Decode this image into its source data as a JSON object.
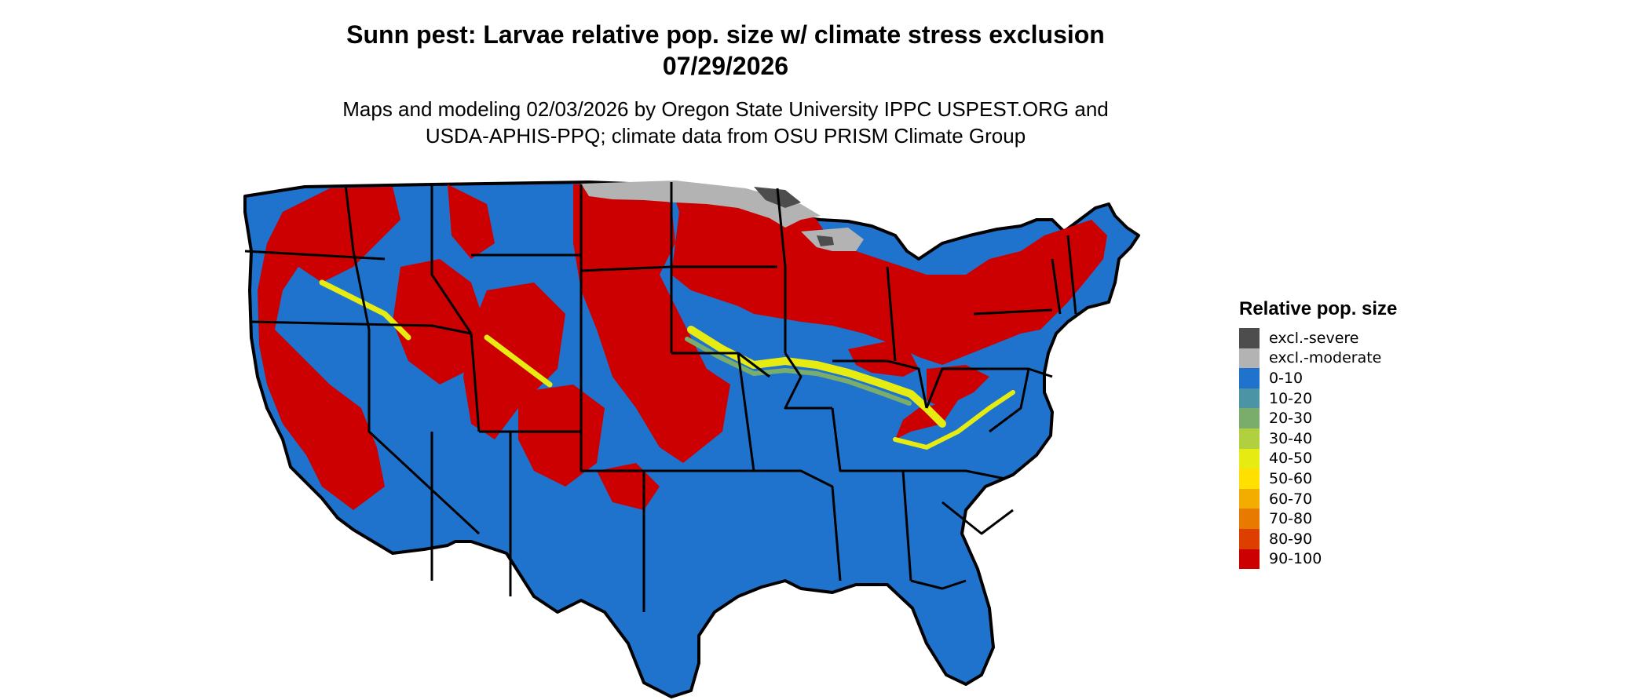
{
  "title_line1": "Sunn pest: Larvae relative pop. size w/ climate stress exclusion",
  "title_line2": "07/29/2026",
  "subtitle_line1": "Maps and modeling 02/03/2026 by Oregon State University IPPC USPEST.ORG and",
  "subtitle_line2": "USDA-APHIS-PPQ; climate data from OSU PRISM Climate Group",
  "map": {
    "region": "Contiguous United States",
    "ocean_color": "#ffffff",
    "border_color": "#000000"
  },
  "legend": {
    "title": "Relative pop. size",
    "items": [
      {
        "label": "excl.-severe",
        "color": "#4d4d4d"
      },
      {
        "label": "excl.-moderate",
        "color": "#b3b3b3"
      },
      {
        "label": "0-10",
        "color": "#1f73cc"
      },
      {
        "label": "10-20",
        "color": "#4b94a6"
      },
      {
        "label": "20-30",
        "color": "#7aad6c"
      },
      {
        "label": "30-40",
        "color": "#b1d040"
      },
      {
        "label": "40-50",
        "color": "#e6ec12"
      },
      {
        "label": "50-60",
        "color": "#ffe000"
      },
      {
        "label": "60-70",
        "color": "#f3ac00"
      },
      {
        "label": "70-80",
        "color": "#e97a00"
      },
      {
        "label": "80-90",
        "color": "#dc3f00"
      },
      {
        "label": "90-100",
        "color": "#cc0000"
      }
    ]
  }
}
